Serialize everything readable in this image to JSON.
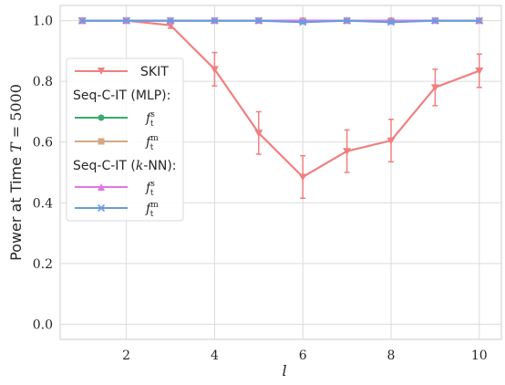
{
  "chart_data": {
    "type": "line",
    "xlabel": "l",
    "ylabel": "Power at Time ",
    "ylabel_math": "T",
    "ylabel_suffix": " = 5000",
    "xlim": [
      0.5,
      10.5
    ],
    "ylim": [
      -0.05,
      1.05
    ],
    "xticks": [
      2,
      4,
      6,
      8,
      10
    ],
    "yticks": [
      0.0,
      0.2,
      0.4,
      0.6,
      0.8,
      1.0
    ],
    "ytick_labels": [
      "0.0",
      "0.2",
      "0.4",
      "0.6",
      "0.8",
      "1.0"
    ],
    "grid": true,
    "legend_placement": "center-left",
    "x": [
      1,
      2,
      3,
      4,
      5,
      6,
      7,
      8,
      9,
      10
    ],
    "series": [
      {
        "name": "SKIT",
        "color": "#f08080",
        "marker": "triangle-down",
        "values": [
          1.0,
          1.0,
          0.985,
          0.84,
          0.63,
          0.485,
          0.57,
          0.605,
          0.78,
          0.835
        ],
        "errors": [
          0,
          0,
          0.01,
          0.055,
          0.07,
          0.07,
          0.07,
          0.07,
          0.06,
          0.055
        ]
      },
      {
        "name": "Seq-C-IT (MLP) f_t^s",
        "color": "#3aaa6e",
        "marker": "circle",
        "values": [
          1.0,
          1.0,
          1.0,
          1.0,
          1.0,
          1.0,
          1.0,
          1.0,
          1.0,
          1.0
        ],
        "errors": [
          0,
          0,
          0,
          0,
          0,
          0,
          0,
          0,
          0,
          0
        ]
      },
      {
        "name": "Seq-C-IT (MLP) f_t^m",
        "color": "#d4a883",
        "marker": "square",
        "values": [
          1.0,
          1.0,
          1.0,
          1.0,
          1.0,
          1.0,
          1.0,
          1.0,
          1.0,
          1.0
        ],
        "errors": [
          0,
          0,
          0,
          0,
          0,
          0,
          0,
          0,
          0,
          0
        ]
      },
      {
        "name": "Seq-C-IT (k-NN) f_t^s",
        "color": "#e377e0",
        "marker": "triangle-up",
        "values": [
          1.0,
          1.0,
          1.0,
          1.0,
          1.0,
          1.0,
          1.0,
          1.0,
          1.0,
          1.0
        ],
        "errors": [
          0,
          0,
          0,
          0,
          0,
          0,
          0,
          0,
          0,
          0
        ]
      },
      {
        "name": "Seq-C-IT (k-NN) f_t^m",
        "color": "#6a9be0",
        "marker": "x",
        "values": [
          1.0,
          1.0,
          1.0,
          1.0,
          1.0,
          0.995,
          1.0,
          0.995,
          1.0,
          1.0
        ],
        "errors": [
          0,
          0,
          0,
          0,
          0,
          0.005,
          0,
          0.005,
          0,
          0
        ]
      }
    ],
    "legend": {
      "skit_label": "SKIT",
      "group1_title": "Seq-C-IT (MLP):",
      "group2_title_pre": "Seq-C-IT (",
      "group2_title_math": "k",
      "group2_title_post": "-NN):",
      "f_symbol": "f",
      "sub_t": "t",
      "sup_s": "s",
      "sup_m": "m"
    }
  }
}
